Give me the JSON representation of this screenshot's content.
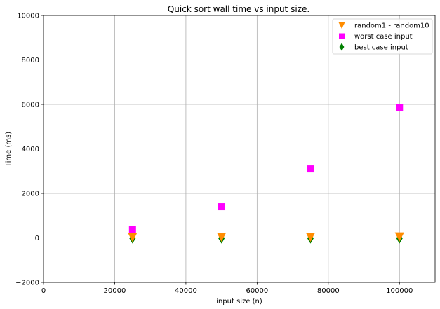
{
  "chart_data": {
    "type": "scatter",
    "title": "Quick sort wall time vs input size.",
    "xlabel": "input size (n)",
    "ylabel": "Time (ms)",
    "xlim": [
      0,
      110000
    ],
    "ylim": [
      -2000,
      10000
    ],
    "xticks": [
      0,
      20000,
      40000,
      60000,
      80000,
      100000
    ],
    "yticks": [
      -2000,
      0,
      2000,
      4000,
      6000,
      8000,
      10000
    ],
    "grid": true,
    "legend_position": "top-right",
    "series": [
      {
        "name": "random1 - random10",
        "marker": "triangle-down",
        "color": "#ff8c00",
        "points": [
          [
            25000,
            20
          ],
          [
            50000,
            30
          ],
          [
            75000,
            30
          ],
          [
            100000,
            40
          ]
        ]
      },
      {
        "name": "worst case input",
        "marker": "square",
        "color": "#ff00ff",
        "points": [
          [
            25000,
            380
          ],
          [
            50000,
            1400
          ],
          [
            75000,
            3100
          ],
          [
            100000,
            5850
          ]
        ]
      },
      {
        "name": "best case input",
        "marker": "diamond",
        "color": "#008000",
        "points": [
          [
            25000,
            -20
          ],
          [
            50000,
            -20
          ],
          [
            75000,
            -20
          ],
          [
            100000,
            -20
          ]
        ]
      }
    ]
  }
}
